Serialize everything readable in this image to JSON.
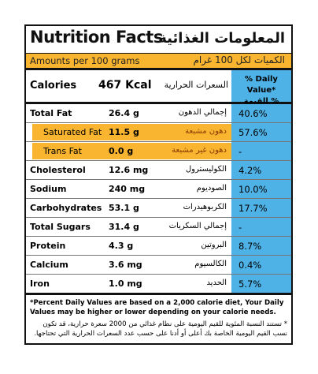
{
  "header": {
    "title": "Nutrition Facts",
    "title_ar": "المعلومات الغذائية",
    "amounts": "Amounts per 100 grams",
    "amounts_ar": "الكميات لكل 100 غرام"
  },
  "calories": {
    "label": "Calories",
    "value": "467 Kcal",
    "label_ar": "السعرات الحرارية",
    "dv": "% Daily Value*",
    "dv_ar": "% القيمة اليومية*"
  },
  "rows": [
    [
      "Total Fat",
      "26.4 g",
      "إجمالي الدهون",
      "40.6%"
    ],
    [
      "Saturated Fat",
      "11.5 g",
      "دهون مشبعة",
      "57.6%"
    ],
    [
      "Trans Fat",
      "0.0 g",
      "دهون غير مشبعة",
      "-"
    ],
    [
      "Cholesterol",
      "12.6 mg",
      "الكوليسترول",
      "4.2%"
    ],
    [
      "Sodium",
      "240 mg",
      "الصوديوم",
      "10.0%"
    ],
    [
      "Carbohydrates",
      "53.1 g",
      "الكربوهيدرات",
      "17.7%"
    ],
    [
      "Total Sugars",
      "31.4 g",
      "إجمالي السكريات",
      "-"
    ],
    [
      "Protein",
      "4.3 g",
      "البروتين",
      "8.7%"
    ],
    [
      "Calcium",
      "3.6 mg",
      "الكالسيوم",
      "0.4%"
    ],
    [
      "Iron",
      "1.0 mg",
      "الحديد",
      "5.7%"
    ]
  ],
  "footnote": {
    "en": "*Percent Daily Values are based on a 2,000 calorie diet, Your Daily Values may be higher or lower depending on your calorie needs.",
    "ar": "* تستند النسبة المئوية للقيم اليومية على نظام غذائي من 2000 سعرة حرارية، قد تكون نسب القيم اليومية الخاصة بك أعلى أو أدنا على حسب عدد السعرات الحرارية التي تحتاجها."
  }
}
